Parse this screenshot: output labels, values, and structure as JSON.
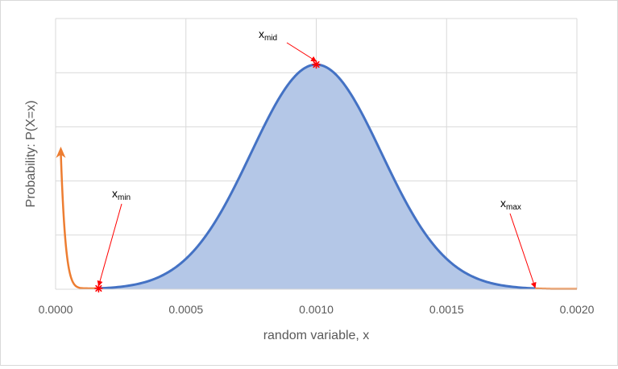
{
  "chart_data": {
    "type": "area",
    "title": "",
    "xlabel": "random variable, x",
    "ylabel": "Probability: P(X=x)",
    "xlim": [
      0,
      0.002
    ],
    "ylim": [
      0,
      1
    ],
    "x_ticks": [
      "0.0000",
      "0.0005",
      "0.0010",
      "0.0015",
      "0.0020"
    ],
    "y_ticks_count": 5,
    "grid": true,
    "legend": "none",
    "colors": {
      "curve": "#4472c4",
      "fill": "#b4c7e7",
      "tail": "#ed7d31",
      "marker": "#ff0000",
      "grid": "#d9d9d9"
    },
    "distribution": {
      "mean": 0.001,
      "sd": 0.00025,
      "peak": 0.83
    },
    "x_min": 0.000165,
    "x_max": 0.00184,
    "tail_left_start": 2e-05,
    "annotations": [
      {
        "id": "xmid",
        "base": "x",
        "sub": "mid",
        "x": 0.001
      },
      {
        "id": "xmin",
        "base": "x",
        "sub": "min",
        "x": 0.000165
      },
      {
        "id": "xmax",
        "base": "x",
        "sub": "max",
        "x": 0.00184
      }
    ]
  }
}
